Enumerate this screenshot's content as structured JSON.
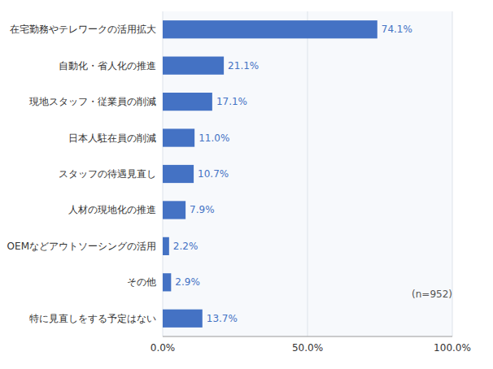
{
  "chart_data": {
    "type": "bar",
    "orientation": "horizontal",
    "categories": [
      "在宅勤務やテレワークの活用拡大",
      "自動化・省人化の推進",
      "現地スタッフ・従業員の削減",
      "日本人駐在員の削減",
      "スタッフの待遇見直し",
      "人材の現地化の推進",
      "OEMなどアウトソーシングの活用",
      "その他",
      "特に見直しをする予定はない"
    ],
    "values": [
      74.1,
      21.1,
      17.1,
      11.0,
      10.7,
      7.9,
      2.2,
      2.9,
      13.7
    ],
    "value_labels": [
      "74.1%",
      "21.1%",
      "17.1%",
      "11.0%",
      "10.7%",
      "7.9%",
      "2.2%",
      "2.9%",
      "13.7%"
    ],
    "data_labels": true,
    "color": "#4472C4",
    "xlim": [
      0,
      100
    ],
    "xticks": [
      {
        "value": 0,
        "label": "0.0%"
      },
      {
        "value": 50,
        "label": "50.0%"
      },
      {
        "value": 100,
        "label": "100.0%"
      }
    ],
    "grid": true,
    "annotations": [
      "(n=952)"
    ]
  }
}
